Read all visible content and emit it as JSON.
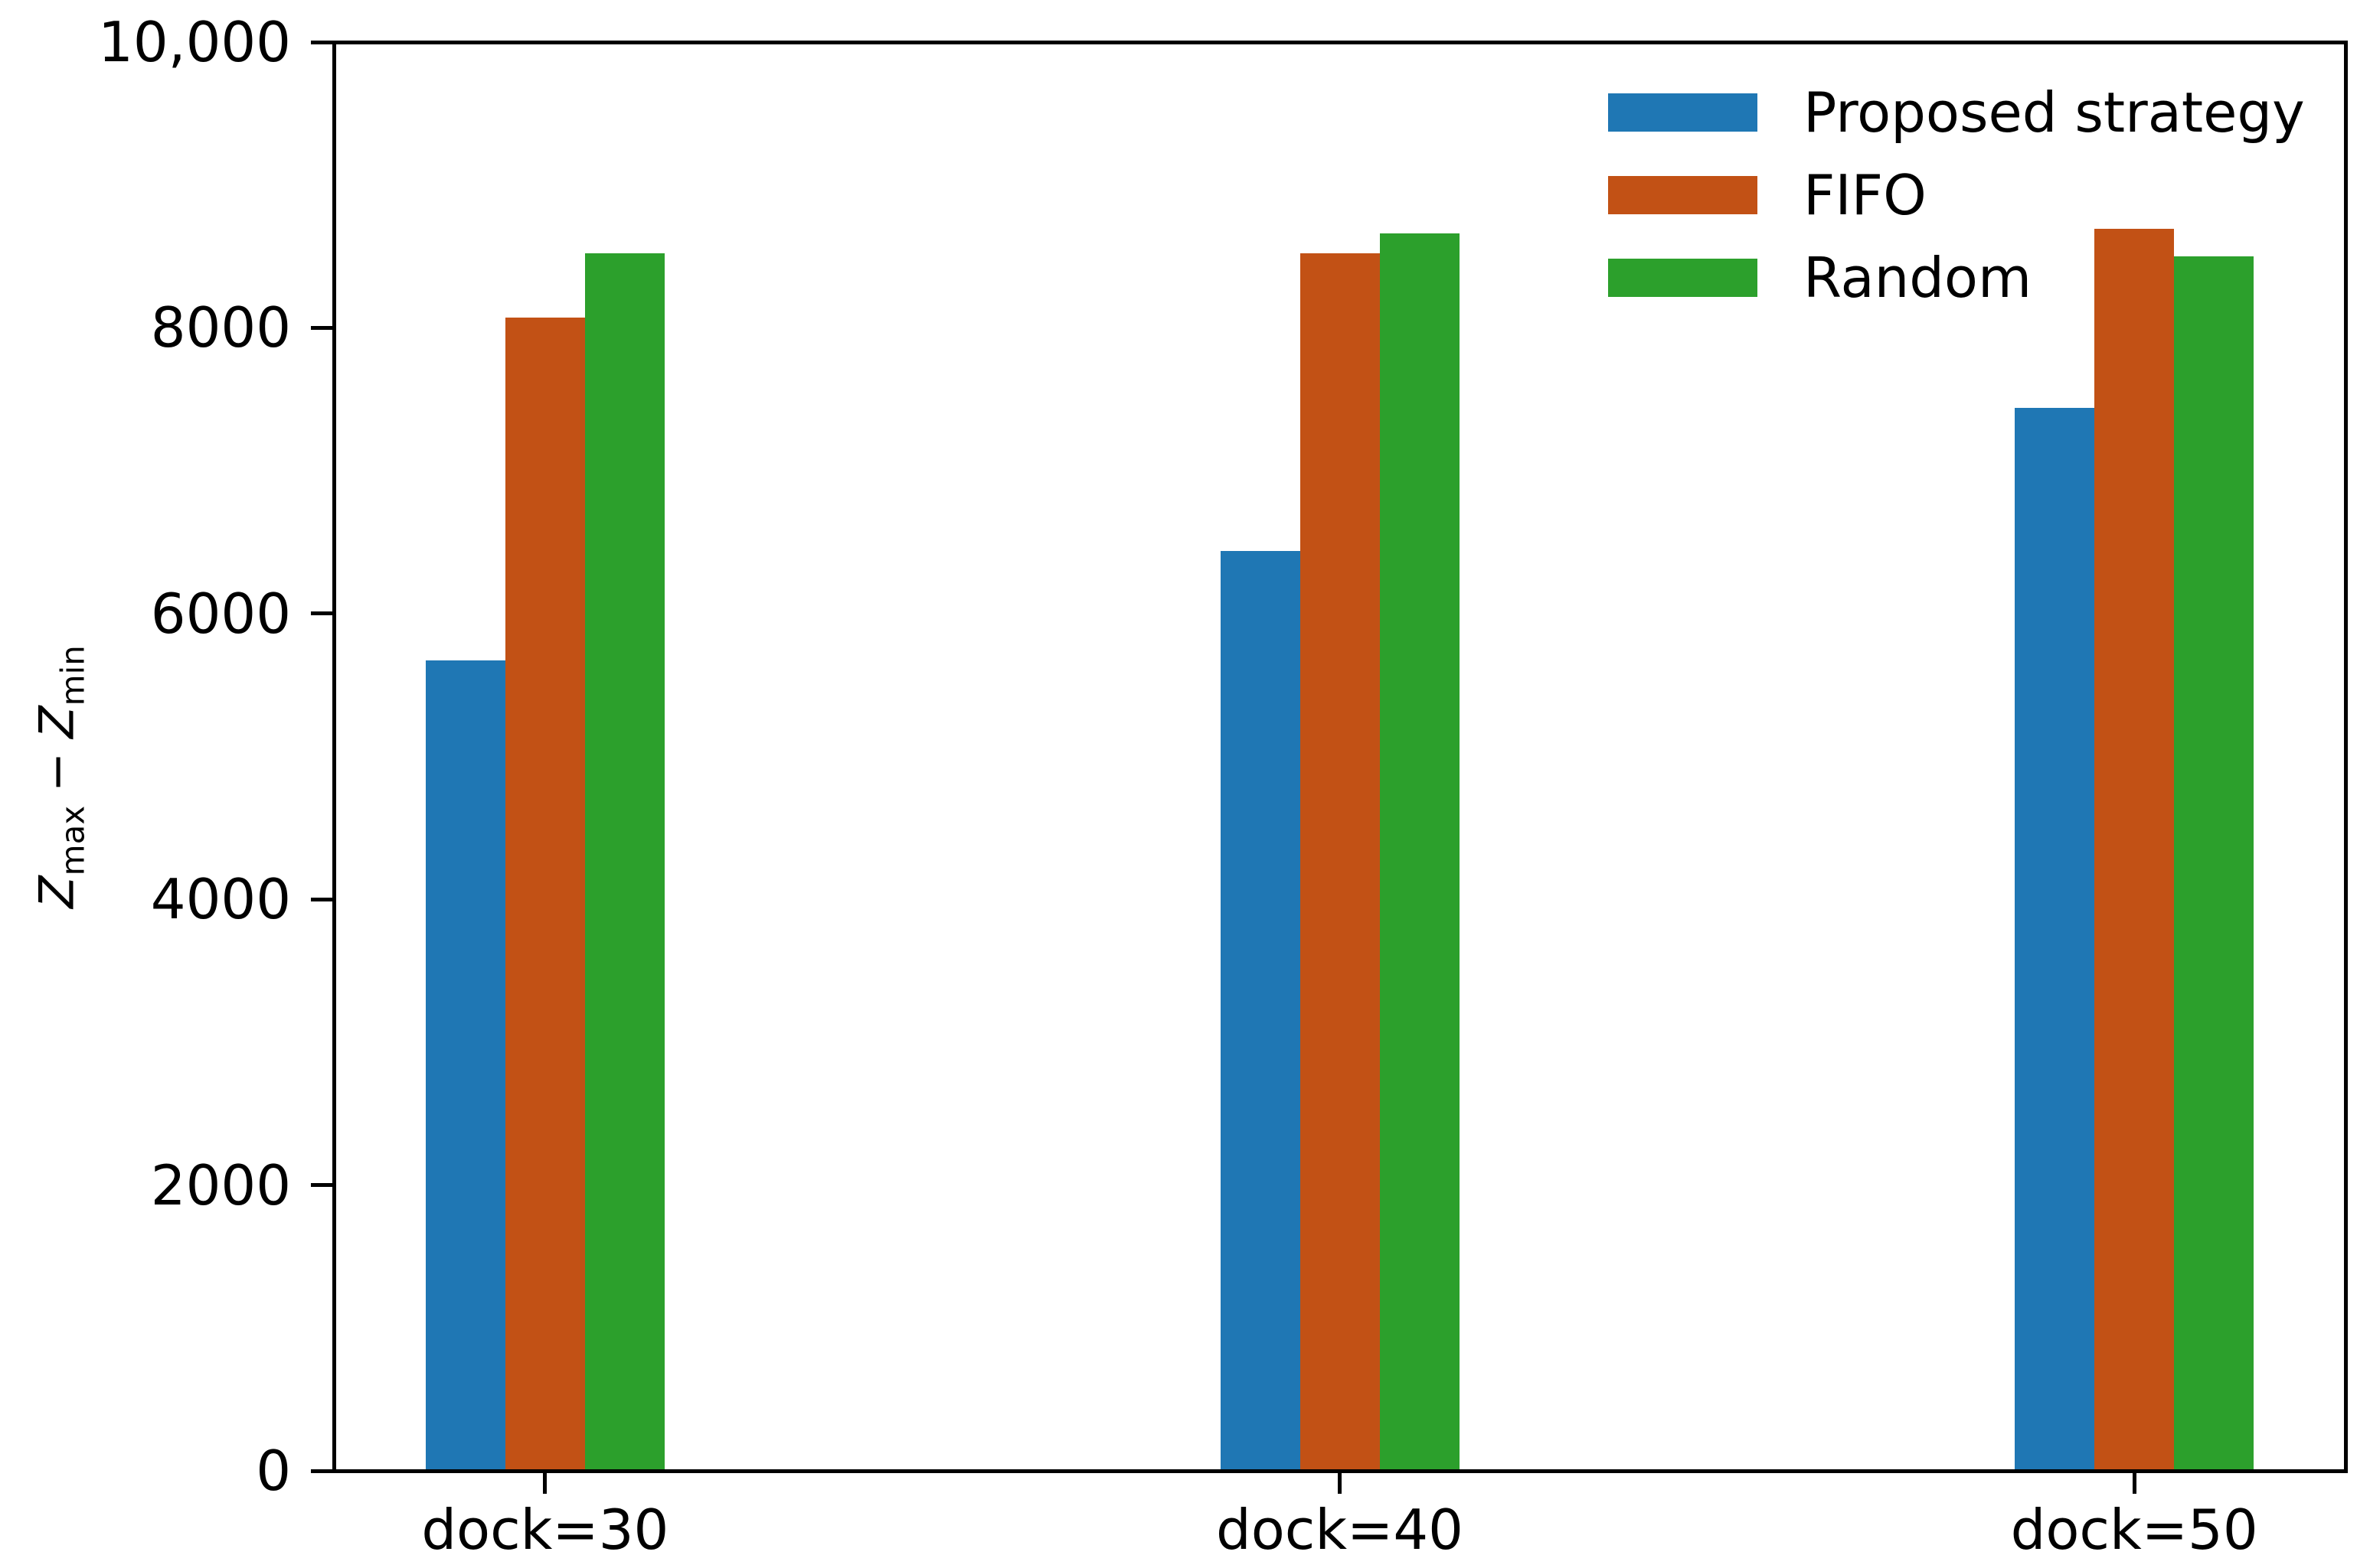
{
  "chart_data": {
    "type": "bar",
    "title": "",
    "xlabel": "",
    "ylabel_text": "Z_max − Z_min",
    "ylabel_parts": {
      "var1": "Z",
      "sub_max": "max",
      "operator": "−",
      "var2": "Z",
      "sub_min": "min"
    },
    "categories": [
      "dock=30",
      "dock=40",
      "dock=50"
    ],
    "series": [
      {
        "name": "Proposed strategy",
        "color": "#1f77b4",
        "values": [
          5660,
          6430,
          7430
        ]
      },
      {
        "name": "FIFO",
        "color": "#c25115",
        "values": [
          8060,
          8510,
          8680
        ]
      },
      {
        "name": "Random",
        "color": "#2ca02c",
        "values": [
          8510,
          8650,
          8490
        ]
      }
    ],
    "ylim": [
      0,
      10000
    ],
    "yticks": [
      {
        "value": 0,
        "label": "0"
      },
      {
        "value": 2000,
        "label": "2000"
      },
      {
        "value": 4000,
        "label": "4000"
      },
      {
        "value": 6000,
        "label": "6000"
      },
      {
        "value": 8000,
        "label": "8000"
      },
      {
        "value": 10000,
        "label": "10,000"
      }
    ],
    "grid": false,
    "legend_position": "upper right",
    "axis_color": "#000000",
    "background_color": "#ffffff"
  }
}
